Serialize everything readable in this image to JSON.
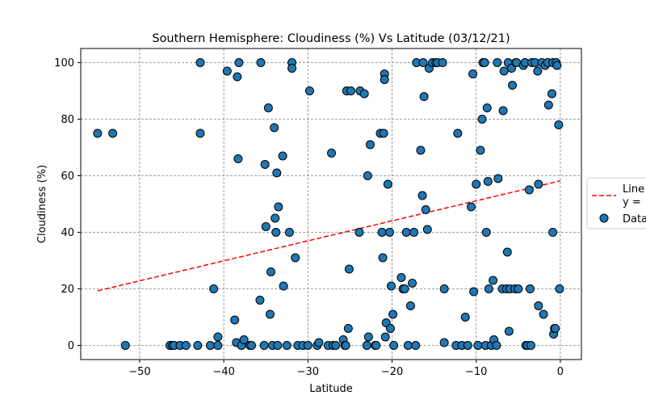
{
  "chart_data": {
    "type": "scatter",
    "title": "Southern Hemisphere: Cloudiness (%) Vs Latitude (03/12/21)",
    "xlabel": "Latitude",
    "ylabel": "Cloudiness (%)",
    "xlim": [
      -57,
      2.5
    ],
    "ylim": [
      -5,
      105
    ],
    "xticks": [
      -50,
      -40,
      -30,
      -20,
      -10,
      0
    ],
    "xtick_labels": [
      "−50",
      "−40",
      "−30",
      "−20",
      "−10",
      "0"
    ],
    "yticks": [
      0,
      20,
      40,
      60,
      80,
      100
    ],
    "ytick_labels": [
      "0",
      "20",
      "40",
      "60",
      "80",
      "100"
    ],
    "grid": true,
    "legend_position": "right (partially cut off)",
    "legend": [
      {
        "label": "Line",
        "label2": "y =",
        "type": "line",
        "color": "#ff0000"
      },
      {
        "label": "Data",
        "type": "marker",
        "color": "#1f77b4"
      }
    ],
    "regression": {
      "x": [
        -55,
        0
      ],
      "y": [
        19.3,
        58.2
      ],
      "color": "#ff0000"
    },
    "points": [
      [
        -55.0,
        75
      ],
      [
        -53.2,
        75
      ],
      [
        -51.7,
        0
      ],
      [
        -46.4,
        0
      ],
      [
        -46.1,
        0
      ],
      [
        -45.9,
        0
      ],
      [
        -45.2,
        0
      ],
      [
        -44.5,
        0
      ],
      [
        -43.1,
        0
      ],
      [
        -42.8,
        75
      ],
      [
        -42.8,
        100
      ],
      [
        -41.6,
        0
      ],
      [
        -41.2,
        20
      ],
      [
        -40.7,
        3
      ],
      [
        -40.7,
        0
      ],
      [
        -39.6,
        97
      ],
      [
        -38.7,
        9
      ],
      [
        -38.5,
        1
      ],
      [
        -38.4,
        95
      ],
      [
        -38.3,
        66
      ],
      [
        -38.2,
        100
      ],
      [
        -37.9,
        0
      ],
      [
        -37.6,
        2
      ],
      [
        -36.9,
        0
      ],
      [
        -36.7,
        0
      ],
      [
        -35.7,
        16
      ],
      [
        -35.6,
        100
      ],
      [
        -35.2,
        0
      ],
      [
        -35.1,
        64
      ],
      [
        -35.0,
        42
      ],
      [
        -34.7,
        84
      ],
      [
        -34.5,
        11
      ],
      [
        -34.4,
        26
      ],
      [
        -34.2,
        0
      ],
      [
        -34.0,
        77
      ],
      [
        -33.9,
        45
      ],
      [
        -33.8,
        40
      ],
      [
        -33.7,
        61
      ],
      [
        -33.6,
        0
      ],
      [
        -33.5,
        49
      ],
      [
        -33.0,
        67
      ],
      [
        -32.9,
        21
      ],
      [
        -32.5,
        0
      ],
      [
        -32.2,
        40
      ],
      [
        -31.9,
        100
      ],
      [
        -31.9,
        98
      ],
      [
        -31.5,
        31
      ],
      [
        -31.2,
        0
      ],
      [
        -30.6,
        0
      ],
      [
        -30.0,
        0
      ],
      [
        -29.8,
        90
      ],
      [
        -28.9,
        0
      ],
      [
        -28.7,
        1
      ],
      [
        -27.6,
        0
      ],
      [
        -27.2,
        68
      ],
      [
        -27.0,
        0
      ],
      [
        -26.7,
        0
      ],
      [
        -25.8,
        2
      ],
      [
        -25.6,
        0
      ],
      [
        -25.5,
        0
      ],
      [
        -25.4,
        90
      ],
      [
        -25.2,
        6
      ],
      [
        -25.1,
        27
      ],
      [
        -24.9,
        90
      ],
      [
        -23.9,
        40
      ],
      [
        -23.8,
        90
      ],
      [
        -23.3,
        89
      ],
      [
        -23.0,
        0
      ],
      [
        -22.9,
        60
      ],
      [
        -22.8,
        3
      ],
      [
        -22.6,
        71
      ],
      [
        -22.0,
        0
      ],
      [
        -21.9,
        0
      ],
      [
        -21.4,
        75
      ],
      [
        -21.2,
        40
      ],
      [
        -21.1,
        31
      ],
      [
        -21.0,
        75
      ],
      [
        -20.9,
        96
      ],
      [
        -20.9,
        94
      ],
      [
        -20.8,
        3
      ],
      [
        -20.7,
        8
      ],
      [
        -20.5,
        57
      ],
      [
        -20.3,
        40
      ],
      [
        -20.2,
        6
      ],
      [
        -20.1,
        21
      ],
      [
        -19.9,
        11
      ],
      [
        -19.8,
        0
      ],
      [
        -18.9,
        24
      ],
      [
        -18.7,
        20
      ],
      [
        -18.5,
        20
      ],
      [
        -18.3,
        40
      ],
      [
        -18.1,
        0
      ],
      [
        -17.8,
        14
      ],
      [
        -17.6,
        22
      ],
      [
        -17.4,
        40
      ],
      [
        -17.2,
        0
      ],
      [
        -17.1,
        100
      ],
      [
        -16.6,
        69
      ],
      [
        -16.4,
        53
      ],
      [
        -16.3,
        100
      ],
      [
        -16.2,
        88
      ],
      [
        -16.0,
        48
      ],
      [
        -15.8,
        41
      ],
      [
        -15.6,
        98
      ],
      [
        -15.2,
        100
      ],
      [
        -14.8,
        100
      ],
      [
        -14.6,
        100
      ],
      [
        -14.0,
        100
      ],
      [
        -13.8,
        20
      ],
      [
        -13.8,
        1
      ],
      [
        -12.4,
        0
      ],
      [
        -12.2,
        75
      ],
      [
        -11.7,
        0
      ],
      [
        -11.3,
        10
      ],
      [
        -11.0,
        0
      ],
      [
        -10.6,
        49
      ],
      [
        -10.4,
        96
      ],
      [
        -10.3,
        19
      ],
      [
        -10.0,
        57
      ],
      [
        -9.8,
        0
      ],
      [
        -9.5,
        69
      ],
      [
        -9.3,
        80
      ],
      [
        -9.2,
        100
      ],
      [
        -9.0,
        100
      ],
      [
        -8.9,
        0
      ],
      [
        -8.8,
        40
      ],
      [
        -8.7,
        84
      ],
      [
        -8.6,
        58
      ],
      [
        -8.5,
        20
      ],
      [
        -8.2,
        0
      ],
      [
        -8.0,
        23
      ],
      [
        -7.9,
        2
      ],
      [
        -7.6,
        0
      ],
      [
        -7.5,
        100
      ],
      [
        -7.4,
        59
      ],
      [
        -6.9,
        20
      ],
      [
        -6.8,
        83
      ],
      [
        -6.7,
        97
      ],
      [
        -6.4,
        20
      ],
      [
        -6.3,
        33
      ],
      [
        -6.2,
        100
      ],
      [
        -6.1,
        5
      ],
      [
        -6.0,
        20
      ],
      [
        -5.8,
        98
      ],
      [
        -5.7,
        92
      ],
      [
        -5.4,
        20
      ],
      [
        -5.3,
        100
      ],
      [
        -5.2,
        100
      ],
      [
        -5.0,
        20
      ],
      [
        -4.4,
        99
      ],
      [
        -4.2,
        100
      ],
      [
        -4.1,
        0
      ],
      [
        -3.9,
        0
      ],
      [
        -3.7,
        55
      ],
      [
        -3.6,
        20
      ],
      [
        -3.5,
        0
      ],
      [
        -3.4,
        100
      ],
      [
        -3.0,
        100
      ],
      [
        -2.7,
        97
      ],
      [
        -2.6,
        57
      ],
      [
        -2.6,
        14
      ],
      [
        -2.2,
        100
      ],
      [
        -2.0,
        11
      ],
      [
        -1.8,
        99
      ],
      [
        -1.5,
        100
      ],
      [
        -1.4,
        85
      ],
      [
        -1.0,
        89
      ],
      [
        -0.9,
        100
      ],
      [
        -0.9,
        40
      ],
      [
        -0.8,
        4
      ],
      [
        -0.7,
        6
      ],
      [
        -0.6,
        6
      ],
      [
        -0.5,
        100
      ],
      [
        -0.4,
        99
      ],
      [
        -0.2,
        78
      ],
      [
        -0.1,
        20
      ]
    ]
  }
}
